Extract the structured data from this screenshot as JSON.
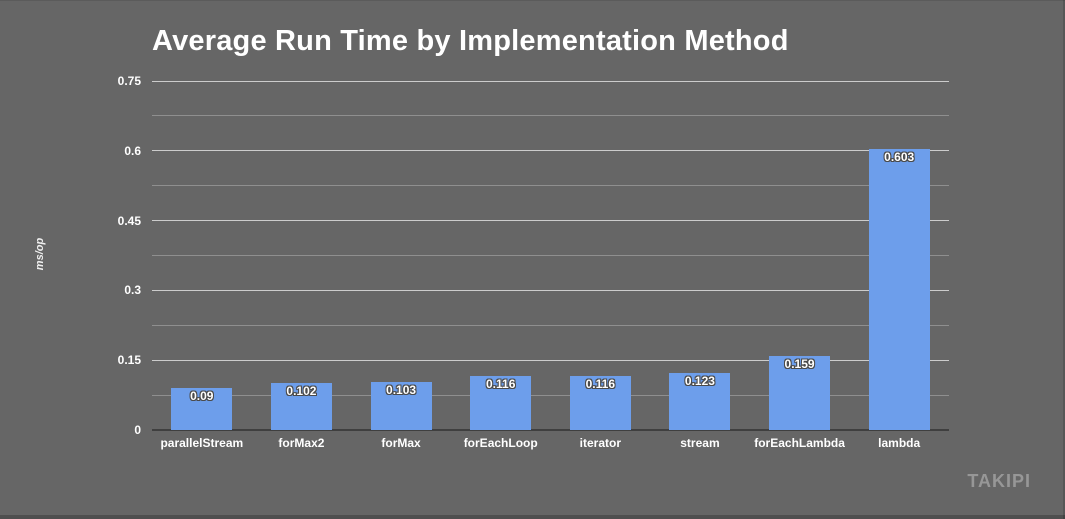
{
  "chart_data": {
    "type": "bar",
    "title": "Average Run Time by Implementation Method",
    "xlabel": "",
    "ylabel": "ms/op",
    "categories": [
      "parallelStream",
      "forMax2",
      "forMax",
      "forEachLoop",
      "iterator",
      "stream",
      "forEachLambda",
      "lambda"
    ],
    "values": [
      0.09,
      0.102,
      0.103,
      0.116,
      0.116,
      0.123,
      0.159,
      0.603
    ],
    "value_labels": [
      "0.09",
      "0.102",
      "0.103",
      "0.116",
      "0.116",
      "0.123",
      "0.159",
      "0.603"
    ],
    "ylim": [
      0,
      0.75
    ],
    "y_ticks": [
      {
        "label": "0",
        "value": 0
      },
      {
        "label": "0.15",
        "value": 0.15
      },
      {
        "label": "0.3",
        "value": 0.3
      },
      {
        "label": "0.45",
        "value": 0.45
      },
      {
        "label": "0.6",
        "value": 0.6
      },
      {
        "label": "0.75",
        "value": 0.75
      }
    ],
    "minor_gridlines": [
      0.075,
      0.225,
      0.375,
      0.525,
      0.675
    ],
    "grid": true,
    "legend": "none",
    "colors": {
      "background": "#666666",
      "bar": "#6d9eeb",
      "gridline_major": "#cccccc",
      "gridline_minor": "#8f8f8f",
      "axis_line": "#3f3f3f",
      "title_text": "#ffffff",
      "tick_text": "#ffffff",
      "value_label_text": "#ffffff",
      "brand_text": "#979797"
    }
  },
  "footer": {
    "brand": "TAKIPI"
  }
}
